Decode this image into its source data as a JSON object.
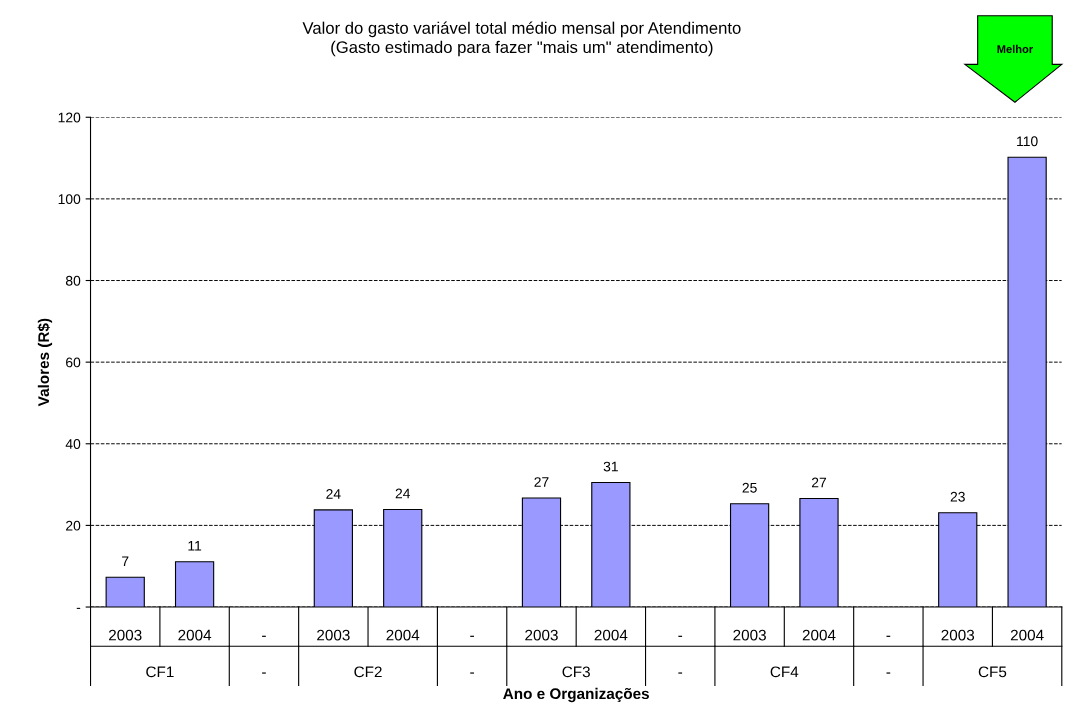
{
  "chart_data": {
    "type": "bar",
    "title": "Valor do gasto variável total médio mensal por Atendimento\n(Gasto estimado para fazer \"mais um\" atendimento)",
    "xlabel": "Ano e Organizações",
    "ylabel": "Valores (R$)",
    "categories": [
      "2003",
      "2004",
      "-",
      "2003",
      "2004",
      "-",
      "2003",
      "2004",
      "-",
      "2003",
      "2004",
      "-",
      "2003",
      "2004"
    ],
    "values": [
      7.3,
      11.1,
      null,
      23.8,
      23.9,
      null,
      26.7,
      30.5,
      null,
      25.3,
      26.6,
      null,
      23.1,
      110.2
    ],
    "value_labels": [
      "7",
      "11",
      null,
      "24",
      "24",
      null,
      "27",
      "31",
      null,
      "25",
      "27",
      null,
      "23",
      "110"
    ],
    "color": "#9999ff",
    "ylim": [
      0,
      120
    ],
    "yticks": [
      {
        "value": 0,
        "label": "-"
      },
      20,
      40,
      60,
      80,
      100,
      120
    ],
    "grid": "y",
    "annotations": [
      "CF1",
      "-",
      "CF2",
      "-",
      "CF3",
      "-",
      "CF4",
      "-",
      "CF5",
      "Melhor"
    ]
  }
}
